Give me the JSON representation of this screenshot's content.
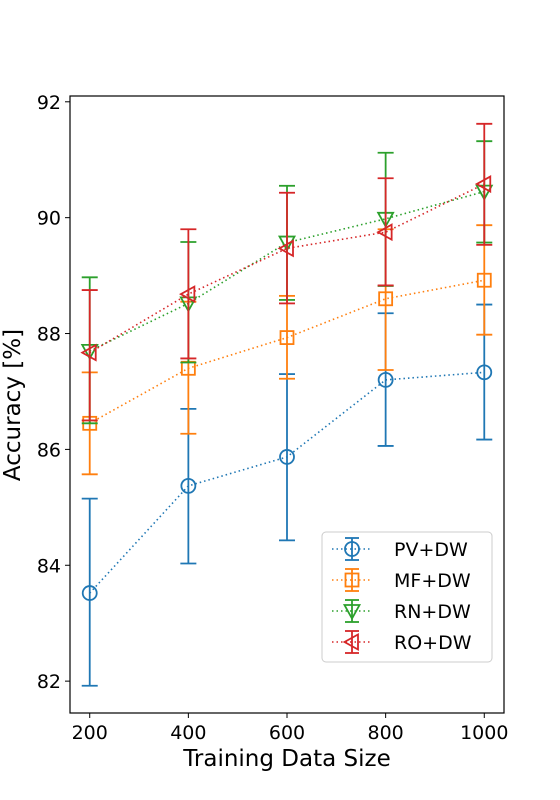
{
  "chart_data": {
    "type": "line",
    "xlabel": "Training Data Size",
    "ylabel": "Accuracy [%]",
    "x": [
      200,
      400,
      600,
      800,
      1000
    ],
    "xticks": [
      "200",
      "400",
      "600",
      "800",
      "1000"
    ],
    "yticks": [
      "82",
      "84",
      "86",
      "88",
      "90",
      "92"
    ],
    "xlim": [
      160,
      1040
    ],
    "ylim": [
      81.45,
      92.1
    ],
    "legend_position": "lower-right",
    "grid": false,
    "series": [
      {
        "name": "PV+DW",
        "color": "#1f77b4",
        "marker": "circle",
        "values": [
          83.52,
          85.37,
          85.87,
          87.2,
          87.33
        ],
        "lower": [
          81.92,
          84.03,
          84.43,
          86.06,
          86.17
        ],
        "upper": [
          85.15,
          86.7,
          87.3,
          88.35,
          88.5
        ]
      },
      {
        "name": "MF+DW",
        "color": "#ff7f0e",
        "marker": "square",
        "values": [
          86.45,
          87.4,
          87.93,
          88.6,
          88.92
        ],
        "lower": [
          85.57,
          86.27,
          87.22,
          87.37,
          87.98
        ],
        "upper": [
          87.33,
          88.55,
          88.65,
          89.8,
          89.87
        ]
      },
      {
        "name": "RN+DW",
        "color": "#2ca02c",
        "marker": "triangle-down",
        "values": [
          87.7,
          88.52,
          89.57,
          89.98,
          90.45
        ],
        "lower": [
          86.45,
          87.5,
          88.58,
          88.82,
          89.57
        ],
        "upper": [
          88.97,
          89.58,
          90.55,
          91.12,
          91.32
        ]
      },
      {
        "name": "RO+DW",
        "color": "#d62728",
        "marker": "triangle-left",
        "values": [
          87.67,
          88.68,
          89.47,
          89.75,
          90.58
        ],
        "lower": [
          86.5,
          87.57,
          88.52,
          88.83,
          89.53
        ],
        "upper": [
          88.75,
          89.8,
          90.43,
          90.68,
          91.62
        ]
      }
    ]
  }
}
